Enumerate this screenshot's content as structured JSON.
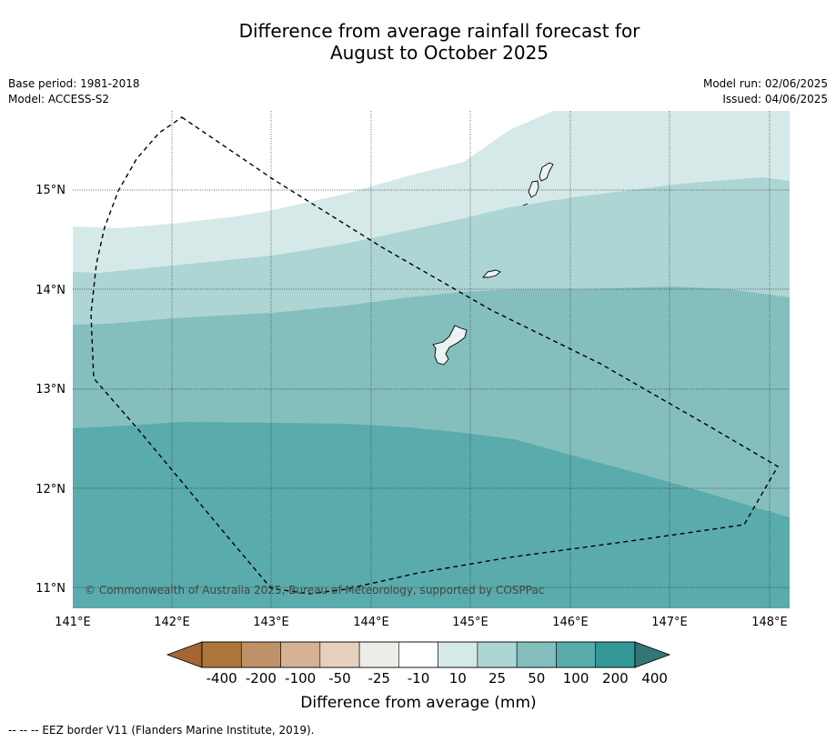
{
  "title": {
    "line1": "Difference from average rainfall forecast for",
    "line2": "August to October 2025"
  },
  "meta": {
    "base_period": "Base period: 1981-2018",
    "model": "Model: ACCESS-S2",
    "model_run": "Model run: 02/06/2025",
    "issued": "Issued: 04/06/2025"
  },
  "map": {
    "lat_range": [
      10.8,
      15.8
    ],
    "lon_range": [
      141.0,
      148.2
    ],
    "lat_labels": [
      "15°N",
      "14°N",
      "13°N",
      "12°N",
      "11°N"
    ],
    "lat_values": [
      15,
      14,
      13,
      12,
      11
    ],
    "lon_labels": [
      "141°E",
      "142°E",
      "143°E",
      "144°E",
      "145°E",
      "146°E",
      "147°E",
      "148°E"
    ],
    "lon_values": [
      141,
      142,
      143,
      144,
      145,
      146,
      147,
      148
    ],
    "copyright": "© Commonwealth of Australia 2025, Bureau of Meteorology, supported by COSPPac",
    "forecast_bands": [
      {
        "range_mm": "10 to 25",
        "color": "#d5e9e8"
      },
      {
        "range_mm": "25 to 50",
        "color": "#add5d4"
      },
      {
        "range_mm": "50 to 100",
        "color": "#84bfbe"
      },
      {
        "range_mm": "100 to 200",
        "color": "#5aabab"
      }
    ]
  },
  "colorbar": {
    "labels": [
      "-400",
      "-200",
      "-100",
      "-50",
      "-25",
      "-10",
      "10",
      "25",
      "50",
      "100",
      "200",
      "400"
    ],
    "colors": [
      "#ad773a",
      "#c09169",
      "#d4b293",
      "#e6d0bf",
      "#eeece9",
      "#ffffff",
      "#d5e9e8",
      "#add5d4",
      "#84bfbe",
      "#5aabab",
      "#349899"
    ],
    "low_extend_color": "#a46734",
    "high_extend_color": "#347675",
    "label": "Difference from average (mm)"
  },
  "footnote": "--  --  -- EEZ border V11 (Flanders Marine Institute, 2019)."
}
